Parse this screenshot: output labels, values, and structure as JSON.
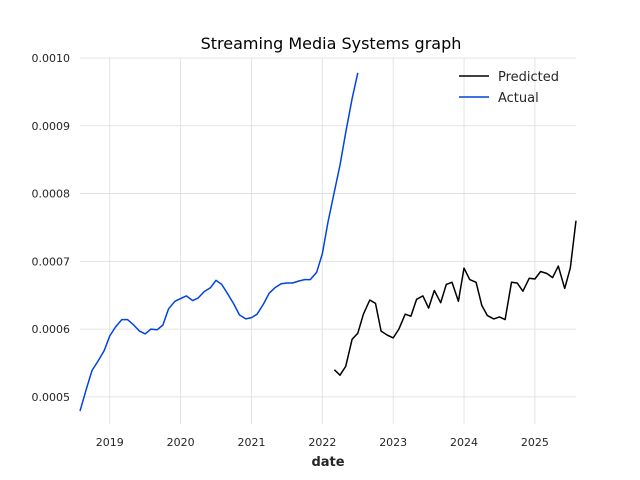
{
  "chart_data": {
    "type": "line",
    "title": "Streaming Media Systems graph",
    "xlabel": "date",
    "ylabel": "",
    "xlim": [
      2018.58,
      2025.58
    ],
    "ylim": [
      0.00046,
      0.001
    ],
    "x_ticks": [
      "2019",
      "2020",
      "2021",
      "2022",
      "2023",
      "2024",
      "2025"
    ],
    "y_ticks": [
      "0.0005",
      "0.0006",
      "0.0007",
      "0.0008",
      "0.0009",
      "0.0010"
    ],
    "grid": true,
    "legend_position": "top-right",
    "series": [
      {
        "name": "Predicted",
        "color": "#000000",
        "x": [
          2022.17,
          2022.25,
          2022.33,
          2022.42,
          2022.5,
          2022.58,
          2022.67,
          2022.75,
          2022.83,
          2022.92,
          2023.0,
          2023.08,
          2023.17,
          2023.25,
          2023.33,
          2023.42,
          2023.5,
          2023.58,
          2023.67,
          2023.75,
          2023.83,
          2023.92,
          2024.0,
          2024.08,
          2024.17,
          2024.25,
          2024.33,
          2024.42,
          2024.5,
          2024.58,
          2024.67,
          2024.75,
          2024.83,
          2024.92,
          2025.0,
          2025.08,
          2025.17,
          2025.25,
          2025.33,
          2025.42,
          2025.5,
          2025.58
        ],
        "values": [
          0.00054,
          0.000532,
          0.000545,
          0.000585,
          0.000594,
          0.000622,
          0.000643,
          0.000638,
          0.000597,
          0.000591,
          0.000587,
          0.0006,
          0.000622,
          0.000619,
          0.000644,
          0.000649,
          0.000631,
          0.000657,
          0.000639,
          0.000666,
          0.000669,
          0.000641,
          0.00069,
          0.000673,
          0.000669,
          0.000635,
          0.00062,
          0.000615,
          0.000618,
          0.000614,
          0.000669,
          0.000668,
          0.000656,
          0.000675,
          0.000674,
          0.000685,
          0.000682,
          0.000676,
          0.000693,
          0.00066,
          0.00069,
          0.00076
        ]
      },
      {
        "name": "Actual",
        "color": "#0044dd",
        "x": [
          2018.58,
          2018.67,
          2018.75,
          2018.83,
          2018.92,
          2019.0,
          2019.08,
          2019.17,
          2019.25,
          2019.33,
          2019.42,
          2019.5,
          2019.58,
          2019.67,
          2019.75,
          2019.83,
          2019.92,
          2020.0,
          2020.08,
          2020.17,
          2020.25,
          2020.33,
          2020.42,
          2020.5,
          2020.58,
          2020.67,
          2020.75,
          2020.83,
          2020.92,
          2021.0,
          2021.08,
          2021.17,
          2021.25,
          2021.33,
          2021.42,
          2021.5,
          2021.58,
          2021.67,
          2021.75,
          2021.83,
          2021.92,
          2022.0,
          2022.08,
          2022.17,
          2022.25,
          2022.33,
          2022.42,
          2022.5
        ],
        "values": [
          0.000479,
          0.000512,
          0.000539,
          0.000552,
          0.000568,
          0.00059,
          0.000603,
          0.000614,
          0.000614,
          0.000607,
          0.000597,
          0.000593,
          0.0006,
          0.000599,
          0.000606,
          0.00063,
          0.000641,
          0.000645,
          0.000649,
          0.000642,
          0.000646,
          0.000655,
          0.000661,
          0.000672,
          0.000666,
          0.000651,
          0.000637,
          0.000621,
          0.000615,
          0.000617,
          0.000622,
          0.000637,
          0.000653,
          0.000661,
          0.000667,
          0.000668,
          0.000668,
          0.000671,
          0.000673,
          0.000673,
          0.000684,
          0.000711,
          0.000758,
          0.000803,
          0.000842,
          0.00089,
          0.00094,
          0.000978
        ]
      }
    ]
  }
}
